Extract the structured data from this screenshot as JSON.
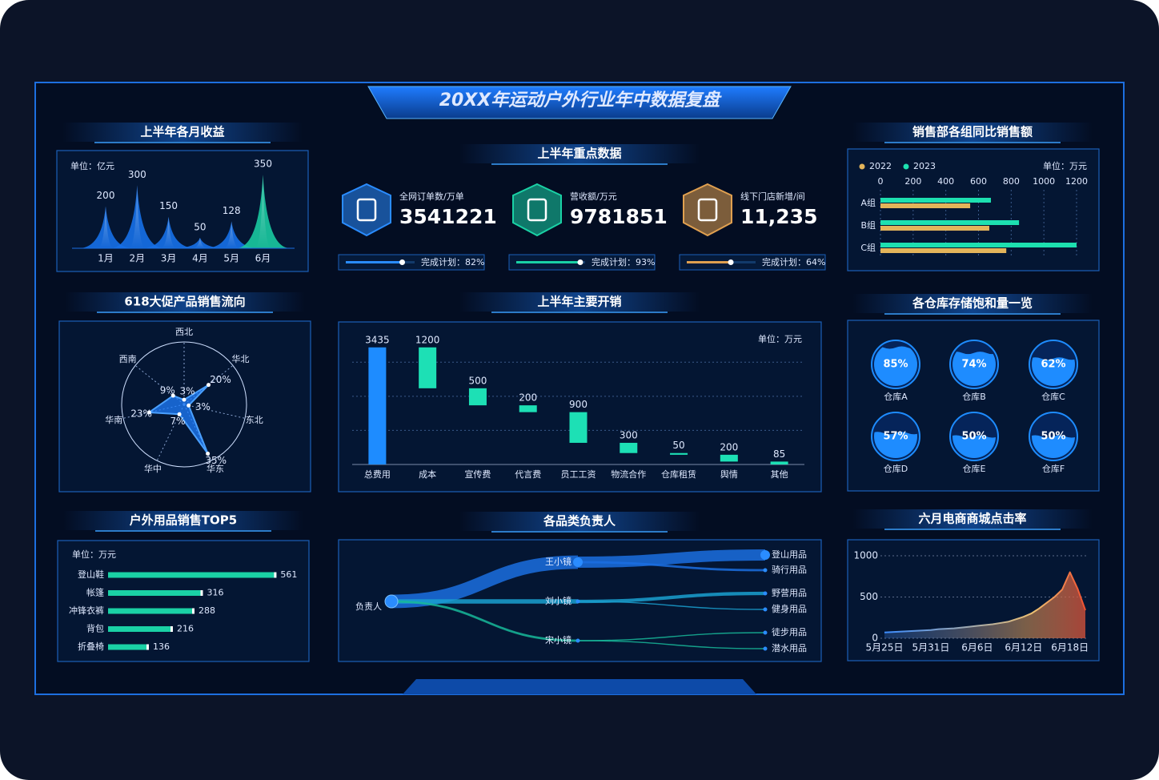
{
  "title": "20XX年运动户外行业年中数据复盘",
  "monthly_revenue": {
    "type": "spike",
    "title": "上半年各月收益",
    "unit": "单位：亿元",
    "categories": [
      "1月",
      "2月",
      "3月",
      "4月",
      "5月",
      "6月"
    ],
    "values": [
      200,
      300,
      150,
      50,
      128,
      350
    ],
    "ylim": [
      0,
      400
    ],
    "colors": [
      "#1670e8",
      "#1670e8",
      "#1670e8",
      "#1670e8",
      "#1670e8",
      "#19c9a0"
    ]
  },
  "key_data": {
    "title": "上半年重点数据",
    "items": [
      {
        "label": "全网订单数/万单",
        "value": "3541221",
        "progress": 82,
        "progress_label": "完成计划：82%",
        "color": "#2a8cff"
      },
      {
        "label": "营收额/万元",
        "value": "9781851",
        "progress": 93,
        "progress_label": "完成计划：93%",
        "color": "#1ad1a5"
      },
      {
        "label": "线下门店新增/间",
        "value": "11,235",
        "progress": 64,
        "progress_label": "完成计划：64%",
        "color": "#e0a050"
      }
    ]
  },
  "sales_flow": {
    "type": "radar",
    "title": "618大促产品销售流向",
    "categories": [
      "西北",
      "华北",
      "东北",
      "华东",
      "华中",
      "华南",
      "西南"
    ],
    "values": [
      3,
      20,
      3,
      35,
      7,
      23,
      9
    ],
    "value_labels": [
      "3%",
      "20%",
      "3%",
      "35%",
      "7%",
      "23%",
      "9%"
    ],
    "rlim": [
      0,
      40
    ],
    "color": "#1e7dff"
  },
  "expenses": {
    "type": "waterfall",
    "title": "上半年主要开销",
    "unit": "单位：万元",
    "categories": [
      "总费用",
      "成本",
      "宣传费",
      "代言费",
      "员工工资",
      "物流合作",
      "仓库租赁",
      "舆情",
      "其他"
    ],
    "values": [
      3435,
      1200,
      500,
      200,
      900,
      300,
      50,
      200,
      85
    ],
    "ylim": [
      0,
      3500
    ],
    "gridlines": [
      1000,
      2000,
      3000
    ],
    "total_color": "#1e8cff",
    "color": "#1de0b5"
  },
  "top5": {
    "type": "bar",
    "title": "户外用品销售TOP5",
    "unit": "单位：万元",
    "categories": [
      "登山鞋",
      "帐篷",
      "冲锋衣裤",
      "背包",
      "折叠椅"
    ],
    "values": [
      561,
      316,
      288,
      216,
      136
    ],
    "xlim": [
      0,
      600
    ],
    "color": "#1ad1a5"
  },
  "owners": {
    "title": "各品类负责人",
    "root": "负责人",
    "people": [
      {
        "name": "王小镜",
        "items": [
          {
            "name": "登山用品",
            "weight": 10
          },
          {
            "name": "骑行用品",
            "weight": 2
          }
        ]
      },
      {
        "name": "刘小镜",
        "items": [
          {
            "name": "野营用品",
            "weight": 3
          },
          {
            "name": "健身用品",
            "weight": 1
          }
        ]
      },
      {
        "name": "宋小镜",
        "items": [
          {
            "name": "徒步用品",
            "weight": 1
          },
          {
            "name": "潜水用品",
            "weight": 1
          }
        ]
      }
    ]
  },
  "group_sales": {
    "type": "bar",
    "title": "销售部各组同比销售额",
    "unit": "单位：万元",
    "categories": [
      "A组",
      "B组",
      "C组"
    ],
    "series": [
      {
        "name": "2022",
        "color": "#e3b45a",
        "values": [
          549,
          666,
          770
        ]
      },
      {
        "name": "2023",
        "color": "#1de0b0",
        "values": [
          676,
          848,
          1200
        ]
      }
    ],
    "xlim": [
      0,
      1200
    ],
    "xticks": [
      0,
      200,
      400,
      600,
      800,
      1000,
      1200
    ],
    "grid": true
  },
  "warehouses": {
    "type": "liquid",
    "title": "各仓库存储饱和量一览",
    "categories": [
      "仓库A",
      "仓库B",
      "仓库C",
      "仓库D",
      "仓库E",
      "仓库F"
    ],
    "values": [
      85,
      74,
      62,
      57,
      50,
      50
    ],
    "value_labels": [
      "85%",
      "74%",
      "62%",
      "57%",
      "50%",
      "50%"
    ],
    "color": "#1e8cff"
  },
  "click_rate": {
    "type": "line",
    "title": "六月电商商城点击率",
    "categories": [
      "5月25日",
      null,
      null,
      null,
      null,
      null,
      "5月31日",
      null,
      null,
      null,
      null,
      null,
      "6月6日",
      null,
      null,
      null,
      null,
      null,
      "6月12日",
      null,
      null,
      null,
      null,
      null,
      "6月18日",
      null,
      null
    ],
    "values": [
      70,
      75,
      80,
      85,
      90,
      95,
      100,
      110,
      115,
      120,
      130,
      140,
      150,
      160,
      170,
      185,
      200,
      230,
      260,
      300,
      360,
      430,
      500,
      590,
      800,
      600,
      340
    ],
    "ylim": [
      0,
      1000
    ],
    "yticks": [
      0,
      500,
      1000
    ],
    "grid": true
  }
}
